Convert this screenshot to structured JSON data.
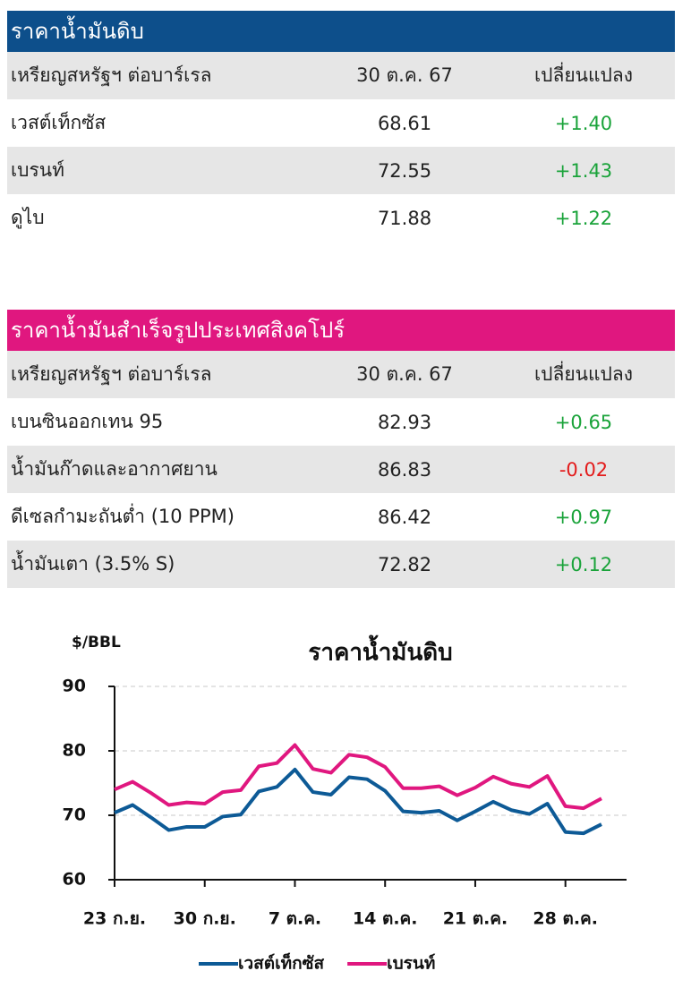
{
  "tables": [
    {
      "title": "ราคาน้ำมันดิบ",
      "title_color": "#0d4f8b",
      "header": [
        "เหรียญสหรัฐฯ ต่อบาร์เรล",
        "30 ต.ค. 67",
        "เปลี่ยนแปลง"
      ],
      "rows": [
        [
          "เวสต์เท็กซัส",
          "68.61",
          "+1.40"
        ],
        [
          "เบรนท์",
          "72.55",
          "+1.43"
        ],
        [
          "ดูไบ",
          "71.88",
          "+1.22"
        ]
      ]
    },
    {
      "title": "ราคาน้ำมันสำเร็จรูปประเทศสิงคโปร์",
      "title_color": "#e0177f",
      "header": [
        "เหรียญสหรัฐฯ ต่อบาร์เรล",
        "30 ต.ค. 67",
        "เปลี่ยนแปลง"
      ],
      "rows": [
        [
          "เบนซินออกเทน 95",
          "82.93",
          "+0.65"
        ],
        [
          "น้ำมันก๊าดและอากาศยาน",
          "86.83",
          "-0.02"
        ],
        [
          "ดีเซลกำมะถันต่ำ (10 PPM)",
          "86.42",
          "+0.97"
        ],
        [
          "น้ำมันเตา (3.5% S)",
          "72.82",
          "+0.12"
        ]
      ]
    }
  ],
  "chart_data": {
    "type": "line",
    "title": "ราคาน้ำมันดิบ",
    "y_label": "$/BBL",
    "categories": [
      "23 ก.ย.",
      null,
      null,
      null,
      null,
      "30 ก.ย.",
      null,
      null,
      null,
      null,
      "7 ต.ค.",
      null,
      null,
      null,
      null,
      "14 ต.ค.",
      null,
      null,
      null,
      null,
      "21 ต.ค.",
      null,
      null,
      null,
      null,
      "28 ต.ค.",
      null,
      null
    ],
    "series": [
      {
        "name": "เวสต์เท็กซัส",
        "color": "#0d5a96",
        "values": [
          70.4,
          71.6,
          69.7,
          67.7,
          68.2,
          68.2,
          69.8,
          70.1,
          73.7,
          74.4,
          77.1,
          73.6,
          73.2,
          75.9,
          75.6,
          73.8,
          70.6,
          70.4,
          70.7,
          69.2,
          70.6,
          72.1,
          70.8,
          70.2,
          71.8,
          67.4,
          67.2,
          68.6
        ]
      },
      {
        "name": "เบรนท์",
        "color": "#e0177f",
        "values": [
          74.0,
          75.2,
          73.5,
          71.6,
          72.0,
          71.8,
          73.6,
          73.9,
          77.6,
          78.1,
          80.9,
          77.2,
          76.6,
          79.4,
          79.0,
          77.5,
          74.2,
          74.2,
          74.5,
          73.1,
          74.3,
          76.0,
          74.9,
          74.4,
          76.1,
          71.4,
          71.1,
          72.6
        ]
      }
    ],
    "ylim": [
      60,
      90
    ],
    "yticks": [
      60,
      70,
      80,
      90
    ],
    "grid": true
  }
}
